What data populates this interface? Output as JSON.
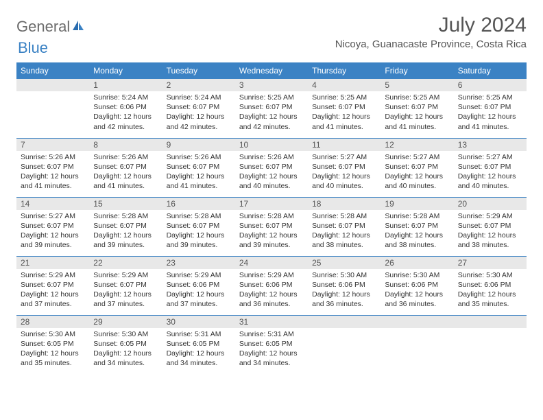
{
  "logo": {
    "text1": "General",
    "text2": "Blue"
  },
  "title": "July 2024",
  "subtitle": "Nicoya, Guanacaste Province, Costa Rica",
  "style": {
    "header_bg": "#3b82c4",
    "header_text": "#ffffff",
    "daynum_bg": "#e8e8e8",
    "border_color": "#3b82c4",
    "page_bg": "#ffffff",
    "body_text": "#333333",
    "title_color": "#555555",
    "font_family": "Arial",
    "title_fontsize": 30,
    "subtitle_fontsize": 15,
    "header_fontsize": 12,
    "cell_fontsize": 10.5
  },
  "days_of_week": [
    "Sunday",
    "Monday",
    "Tuesday",
    "Wednesday",
    "Thursday",
    "Friday",
    "Saturday"
  ],
  "weeks": [
    [
      null,
      {
        "n": "1",
        "sunrise": "5:24 AM",
        "sunset": "6:06 PM",
        "daylight": "12 hours and 42 minutes."
      },
      {
        "n": "2",
        "sunrise": "5:24 AM",
        "sunset": "6:07 PM",
        "daylight": "12 hours and 42 minutes."
      },
      {
        "n": "3",
        "sunrise": "5:25 AM",
        "sunset": "6:07 PM",
        "daylight": "12 hours and 42 minutes."
      },
      {
        "n": "4",
        "sunrise": "5:25 AM",
        "sunset": "6:07 PM",
        "daylight": "12 hours and 41 minutes."
      },
      {
        "n": "5",
        "sunrise": "5:25 AM",
        "sunset": "6:07 PM",
        "daylight": "12 hours and 41 minutes."
      },
      {
        "n": "6",
        "sunrise": "5:25 AM",
        "sunset": "6:07 PM",
        "daylight": "12 hours and 41 minutes."
      }
    ],
    [
      {
        "n": "7",
        "sunrise": "5:26 AM",
        "sunset": "6:07 PM",
        "daylight": "12 hours and 41 minutes."
      },
      {
        "n": "8",
        "sunrise": "5:26 AM",
        "sunset": "6:07 PM",
        "daylight": "12 hours and 41 minutes."
      },
      {
        "n": "9",
        "sunrise": "5:26 AM",
        "sunset": "6:07 PM",
        "daylight": "12 hours and 41 minutes."
      },
      {
        "n": "10",
        "sunrise": "5:26 AM",
        "sunset": "6:07 PM",
        "daylight": "12 hours and 40 minutes."
      },
      {
        "n": "11",
        "sunrise": "5:27 AM",
        "sunset": "6:07 PM",
        "daylight": "12 hours and 40 minutes."
      },
      {
        "n": "12",
        "sunrise": "5:27 AM",
        "sunset": "6:07 PM",
        "daylight": "12 hours and 40 minutes."
      },
      {
        "n": "13",
        "sunrise": "5:27 AM",
        "sunset": "6:07 PM",
        "daylight": "12 hours and 40 minutes."
      }
    ],
    [
      {
        "n": "14",
        "sunrise": "5:27 AM",
        "sunset": "6:07 PM",
        "daylight": "12 hours and 39 minutes."
      },
      {
        "n": "15",
        "sunrise": "5:28 AM",
        "sunset": "6:07 PM",
        "daylight": "12 hours and 39 minutes."
      },
      {
        "n": "16",
        "sunrise": "5:28 AM",
        "sunset": "6:07 PM",
        "daylight": "12 hours and 39 minutes."
      },
      {
        "n": "17",
        "sunrise": "5:28 AM",
        "sunset": "6:07 PM",
        "daylight": "12 hours and 39 minutes."
      },
      {
        "n": "18",
        "sunrise": "5:28 AM",
        "sunset": "6:07 PM",
        "daylight": "12 hours and 38 minutes."
      },
      {
        "n": "19",
        "sunrise": "5:28 AM",
        "sunset": "6:07 PM",
        "daylight": "12 hours and 38 minutes."
      },
      {
        "n": "20",
        "sunrise": "5:29 AM",
        "sunset": "6:07 PM",
        "daylight": "12 hours and 38 minutes."
      }
    ],
    [
      {
        "n": "21",
        "sunrise": "5:29 AM",
        "sunset": "6:07 PM",
        "daylight": "12 hours and 37 minutes."
      },
      {
        "n": "22",
        "sunrise": "5:29 AM",
        "sunset": "6:07 PM",
        "daylight": "12 hours and 37 minutes."
      },
      {
        "n": "23",
        "sunrise": "5:29 AM",
        "sunset": "6:06 PM",
        "daylight": "12 hours and 37 minutes."
      },
      {
        "n": "24",
        "sunrise": "5:29 AM",
        "sunset": "6:06 PM",
        "daylight": "12 hours and 36 minutes."
      },
      {
        "n": "25",
        "sunrise": "5:30 AM",
        "sunset": "6:06 PM",
        "daylight": "12 hours and 36 minutes."
      },
      {
        "n": "26",
        "sunrise": "5:30 AM",
        "sunset": "6:06 PM",
        "daylight": "12 hours and 36 minutes."
      },
      {
        "n": "27",
        "sunrise": "5:30 AM",
        "sunset": "6:06 PM",
        "daylight": "12 hours and 35 minutes."
      }
    ],
    [
      {
        "n": "28",
        "sunrise": "5:30 AM",
        "sunset": "6:05 PM",
        "daylight": "12 hours and 35 minutes."
      },
      {
        "n": "29",
        "sunrise": "5:30 AM",
        "sunset": "6:05 PM",
        "daylight": "12 hours and 34 minutes."
      },
      {
        "n": "30",
        "sunrise": "5:31 AM",
        "sunset": "6:05 PM",
        "daylight": "12 hours and 34 minutes."
      },
      {
        "n": "31",
        "sunrise": "5:31 AM",
        "sunset": "6:05 PM",
        "daylight": "12 hours and 34 minutes."
      },
      null,
      null,
      null
    ]
  ],
  "labels": {
    "sunrise": "Sunrise:",
    "sunset": "Sunset:",
    "daylight": "Daylight:"
  }
}
